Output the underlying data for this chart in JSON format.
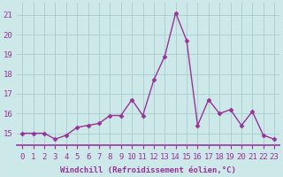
{
  "x": [
    0,
    1,
    2,
    3,
    4,
    5,
    6,
    7,
    8,
    9,
    10,
    11,
    12,
    13,
    14,
    15,
    16,
    17,
    18,
    19,
    20,
    21,
    22,
    23
  ],
  "y": [
    15.0,
    15.0,
    15.0,
    14.7,
    14.9,
    15.3,
    15.4,
    15.5,
    15.9,
    15.9,
    16.7,
    15.9,
    17.7,
    18.9,
    21.1,
    19.7,
    15.4,
    16.7,
    16.0,
    16.2,
    15.4,
    16.1,
    14.9,
    14.7
  ],
  "line_color": "#993399",
  "marker": "D",
  "marker_size": 2.5,
  "bg_color": "#cce8e8",
  "plot_bg_color": "#cce8e8",
  "grid_color": "#aacccc",
  "xlabel": "Windchill (Refroidissement éolien,°C)",
  "xlabel_fontsize": 6.5,
  "ylabel_ticks": [
    15,
    16,
    17,
    18,
    19,
    20,
    21
  ],
  "ylim": [
    14.4,
    21.6
  ],
  "xlim": [
    -0.5,
    23.5
  ],
  "tick_fontsize": 6.5,
  "spine_color": "#993399",
  "linewidth": 1.0
}
